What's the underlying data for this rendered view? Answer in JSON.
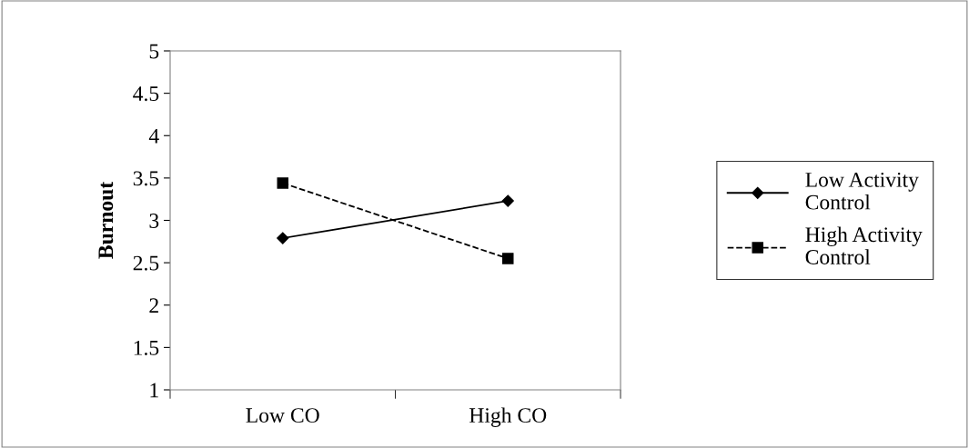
{
  "chart_data": {
    "type": "line",
    "ylabel": "Burnout",
    "categories": [
      "Low CO",
      "High CO"
    ],
    "series": [
      {
        "name": "Low Activity Control",
        "color": "#000000",
        "values": [
          2.79,
          3.23
        ],
        "marker": "diamond",
        "line_style": "solid"
      },
      {
        "name": "High Activity Control",
        "color": "#000000",
        "values": [
          3.44,
          2.55
        ],
        "marker": "square",
        "line_style": "dashed"
      }
    ],
    "ylim": [
      1,
      5
    ],
    "yticks": [
      1,
      1.5,
      2,
      2.5,
      3,
      3.5,
      4,
      4.5,
      5
    ],
    "grid": false,
    "legend": "right"
  }
}
